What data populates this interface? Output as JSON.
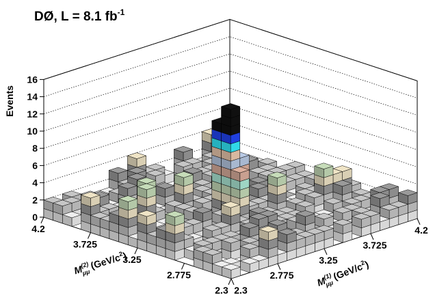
{
  "chart_data": {
    "type": "lego3d",
    "title": "DØ, L = 8.1 fb",
    "title_superscript": "-1",
    "zlabel": "Events",
    "xlabel": {
      "symbol": "M",
      "superscript": "(1)",
      "subscript": "μμ",
      "units_pre": " (GeV/c",
      "units_sup": "2",
      "units_post": ")"
    },
    "ylabel": {
      "symbol": "M",
      "superscript": "(2)",
      "subscript": "μμ",
      "units_pre": " (GeV/c",
      "units_sup": "2",
      "units_post": ")"
    },
    "x_ticks": [
      "2.3",
      "2.775",
      "3.25",
      "3.725",
      "4.2"
    ],
    "y_ticks": [
      "2.3",
      "2.775",
      "3.25",
      "3.725",
      "4.2"
    ],
    "z_ticks": [
      "0",
      "2",
      "4",
      "6",
      "8",
      "10",
      "12",
      "14",
      "16"
    ],
    "xlim": [
      2.3,
      4.2
    ],
    "ylim": [
      2.3,
      4.2
    ],
    "zlim": [
      0,
      16
    ],
    "bins_per_axis": 20,
    "grid": true,
    "color_palette": [
      "#d8d8d8",
      "#b4b4b4",
      "#8c8c8c",
      "#d9cfb4",
      "#b4c8a8",
      "#9ed6c4",
      "#c8a090",
      "#a8b8d0",
      "#d8b8a0",
      "#30d8e8",
      "#2040e0",
      "#101010"
    ],
    "peak_value": 14,
    "peak_bin": {
      "x": 3.1,
      "y": 3.1
    }
  }
}
